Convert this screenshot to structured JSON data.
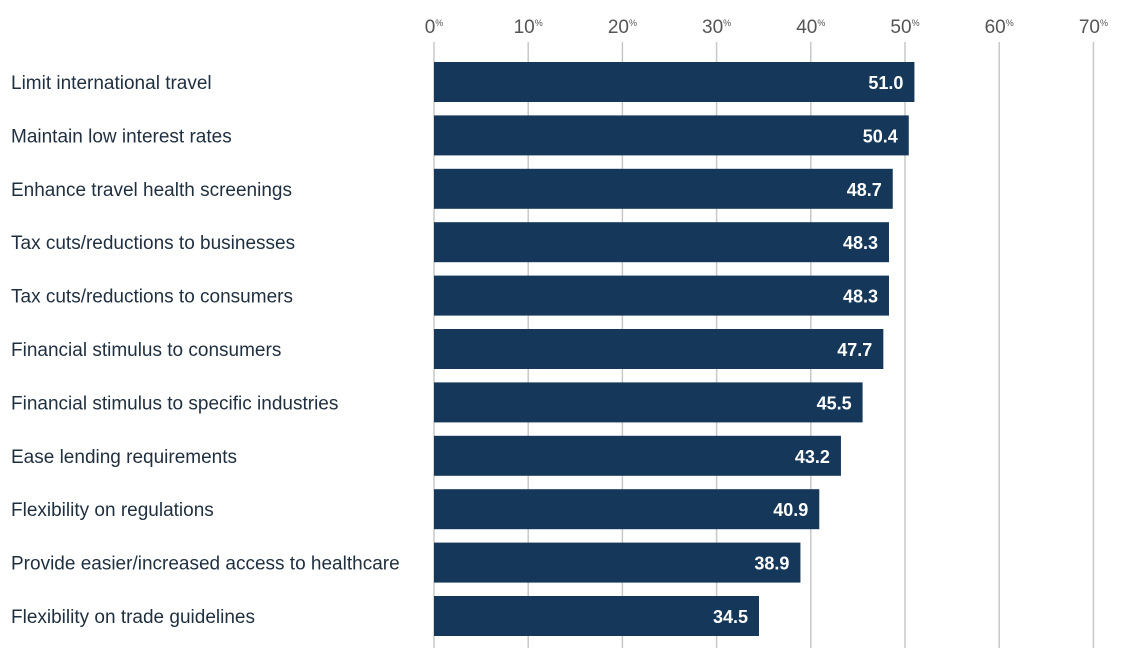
{
  "chart_data": {
    "type": "bar",
    "orientation": "horizontal",
    "categories": [
      "Limit international travel",
      "Maintain low interest rates",
      "Enhance travel health screenings",
      "Tax cuts/reductions to businesses",
      "Tax cuts/reductions to consumers",
      "Financial stimulus to consumers",
      "Financial stimulus to specific industries",
      "Ease lending requirements",
      "Flexibility on regulations",
      "Provide easier/increased access to healthcare",
      "Flexibility on trade guidelines"
    ],
    "values": [
      51.0,
      50.4,
      48.7,
      48.3,
      48.3,
      47.7,
      45.5,
      43.2,
      40.9,
      38.9,
      34.5
    ],
    "data_labels": [
      "51.0",
      "50.4",
      "48.7",
      "48.3",
      "48.3",
      "47.7",
      "45.5",
      "43.2",
      "40.9",
      "38.9",
      "34.5"
    ],
    "xticks": [
      0,
      10,
      20,
      30,
      40,
      50,
      60,
      70
    ],
    "xtick_unit": "%",
    "xlim": [
      0,
      70
    ],
    "grid": true,
    "axis_position": "top",
    "bar_color": "#14375a",
    "label_color": "#ffffff",
    "title": "",
    "xlabel": "",
    "ylabel": ""
  }
}
